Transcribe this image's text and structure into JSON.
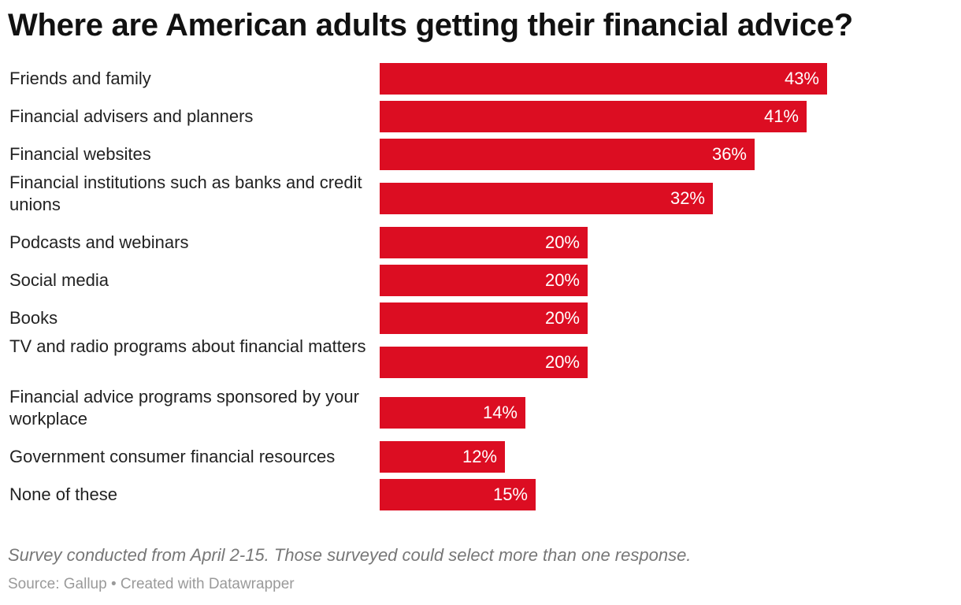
{
  "header": {
    "title": "Where are American adults getting their financial advice?"
  },
  "chart_data": {
    "type": "bar",
    "orientation": "horizontal",
    "title": "Where are American adults getting their financial advice?",
    "categories": [
      "Friends and family",
      "Financial advisers and planners",
      "Financial websites",
      "Financial institutions such as banks and credit unions",
      "Podcasts and webinars",
      "Social media",
      "Books",
      "TV and radio programs about financial matters",
      "Financial advice programs sponsored by your workplace",
      "Government consumer financial resources",
      "None of these"
    ],
    "values": [
      43,
      41,
      36,
      32,
      20,
      20,
      20,
      20,
      14,
      12,
      15
    ],
    "value_labels": [
      "43%",
      "41%",
      "36%",
      "32%",
      "20%",
      "20%",
      "20%",
      "20%",
      "14%",
      "12%",
      "15%"
    ],
    "unit": "%",
    "xlim": [
      0,
      43
    ],
    "grid": false,
    "legend": "none",
    "bar_color": "#dc0d22"
  },
  "notes": "Survey conducted from April 2-15. Those surveyed could select more than one response.",
  "footer": "Source: Gallup • Created with Datawrapper"
}
